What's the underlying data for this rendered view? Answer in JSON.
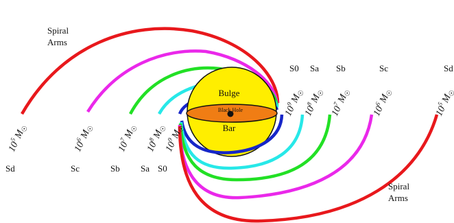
{
  "colors": {
    "sd": "#e8181c",
    "sc": "#ea28ea",
    "sb": "#22e025",
    "sa": "#27e8e8",
    "s0": "#1626c8",
    "bulge": "#ffee00",
    "bar": "#f07d14",
    "black_hole": "#111111"
  },
  "labels": {
    "spiral_arms_top": [
      "Spiral",
      "Arms"
    ],
    "spiral_arms_bottom": [
      "Spiral",
      "Arms"
    ],
    "bulge": "Bulge",
    "bar": "Bar",
    "black_hole": "Black Hole",
    "types_left": [
      "Sd",
      "Sc",
      "Sb",
      "Sa",
      "S0"
    ],
    "types_right": [
      "S0",
      "Sa",
      "Sb",
      "Sc",
      "Sd"
    ]
  },
  "masses": [
    {
      "type": "Sd",
      "exponent": "5",
      "unit": "M",
      "sun": "☉"
    },
    {
      "type": "Sc",
      "exponent": "6",
      "unit": "M",
      "sun": "☉"
    },
    {
      "type": "Sb",
      "exponent": "7",
      "unit": "M",
      "sun": "☉"
    },
    {
      "type": "Sa",
      "exponent": "8",
      "unit": "M",
      "sun": "☉"
    },
    {
      "type": "S0",
      "exponent": "9",
      "unit": "M",
      "sun": "☉"
    }
  ],
  "mass_base": "10"
}
